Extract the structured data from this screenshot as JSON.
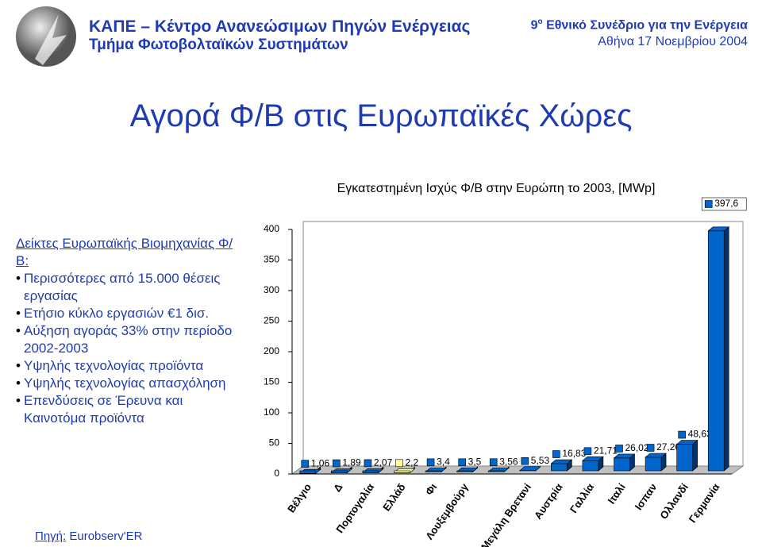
{
  "header": {
    "org": "ΚΑΠΕ – Κέντρο Ανανεώσιμων Πηγών Ενέργειας",
    "dept": "Τμήμα Φωτοβολταϊκών Συστημάτων",
    "conf_number": "9",
    "conf_suffix": "ο",
    "conf_name": "Εθνικό Συνέδριο για την Ενέργεια",
    "conf_date": "Αθήνα 17 Νοεμβρίου 2004"
  },
  "slide_title": "Αγορά Φ/Β στις Ευρωπαϊκές Χώρες",
  "indicators": {
    "heading": "Δείκτες Ευρωπαϊκής Βιομηχανίας Φ/Β:",
    "bullets": [
      "Περισσότερες από 15.000 θέσεις εργασίας",
      "Ετήσιο κύκλο εργασιών €1 δισ.",
      "Αύξηση αγοράς 33% στην περίοδο 2002-2003",
      "Υψηλής τεχνολογίας προϊόντα",
      "Υψηλής τεχνολογίας απασχόληση",
      "Επενδύσεις σε Έρευνα και Καινοτόμα προϊόντα"
    ]
  },
  "source": {
    "label": "Πηγή:",
    "text": "Eurobserv'ER"
  },
  "chart_data": {
    "type": "bar3d",
    "title": "Εγκατεστημένη Ισχύς Φ/Β στην Ευρώπη το 2003, [MWp]",
    "categories": [
      "Βέλγιο",
      "Δ",
      "Πορτογαλία",
      "Ελλάδ",
      "Φι",
      "Λουξεμβούργ",
      null,
      "Μεγάλη Βρετανί",
      "Αυστρία",
      "Γαλλία",
      "Ιταλί",
      "Ισπαν",
      "Ολλανδί",
      "Γερμανία"
    ],
    "values": [
      1.06,
      1.89,
      2.07,
      2.2,
      3.4,
      3.5,
      3.56,
      5.53,
      16.83,
      21.71,
      26.02,
      27.26,
      48.63,
      397.6
    ],
    "value_labels": [
      "1,06",
      "1,89",
      "2,07",
      "2,2",
      "3,4",
      "3,5",
      "3,56",
      "5,53",
      "16,83",
      "21,71",
      "26,02",
      "27,26",
      "48,63",
      "397,6"
    ],
    "colors": [
      "#0066cc",
      "#0066cc",
      "#0066cc",
      "#ffff99",
      "#0066cc",
      "#0066cc",
      "#0066cc",
      "#0066cc",
      "#0066cc",
      "#0066cc",
      "#0066cc",
      "#0066cc",
      "#0066cc",
      "#0066cc"
    ],
    "ylim": [
      0,
      400
    ],
    "yticks": [
      0,
      50,
      100,
      150,
      200,
      250,
      300,
      350,
      400
    ]
  }
}
